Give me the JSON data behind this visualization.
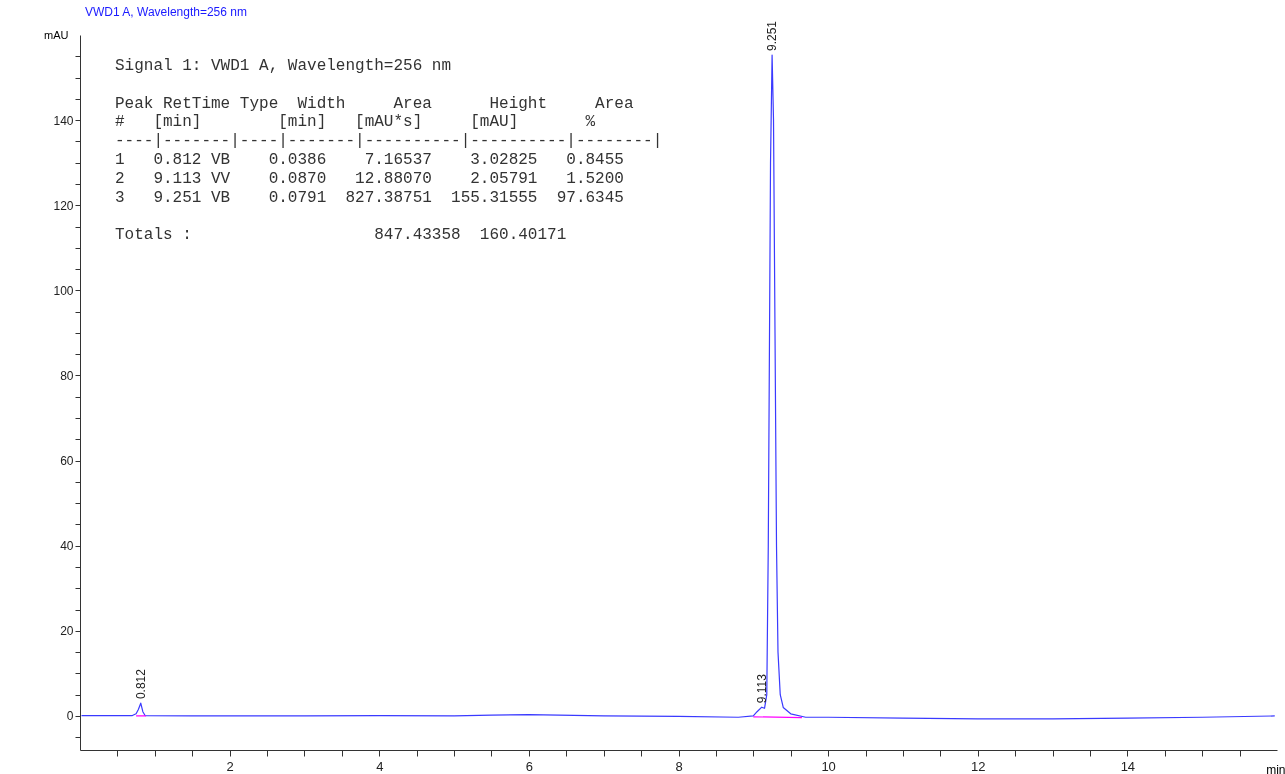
{
  "chart_data": {
    "type": "line",
    "title": "VWD1 A, Wavelength=256 nm",
    "xlabel": "min",
    "ylabel": "mAU",
    "xlim": [
      0,
      16
    ],
    "ylim": [
      -8,
      160
    ],
    "xticks": [
      {
        "value": 0.5,
        "label": null
      },
      {
        "value": 1,
        "label": null
      },
      {
        "value": 1.5,
        "label": null
      },
      2,
      {
        "value": 2.5,
        "label": null
      },
      {
        "value": 3,
        "label": null
      },
      {
        "value": 3.5,
        "label": null
      },
      4,
      {
        "value": 4.5,
        "label": null
      },
      {
        "value": 5,
        "label": null
      },
      {
        "value": 5.5,
        "label": null
      },
      6,
      {
        "value": 6.5,
        "label": null
      },
      {
        "value": 7,
        "label": null
      },
      {
        "value": 7.5,
        "label": null
      },
      8,
      {
        "value": 8.5,
        "label": null
      },
      {
        "value": 9,
        "label": null
      },
      {
        "value": 9.5,
        "label": null
      },
      10,
      {
        "value": 10.5,
        "label": null
      },
      {
        "value": 11,
        "label": null
      },
      {
        "value": 11.5,
        "label": null
      },
      12,
      {
        "value": 12.5,
        "label": null
      },
      {
        "value": 13,
        "label": null
      },
      {
        "value": 13.5,
        "label": null
      },
      14,
      {
        "value": 14.5,
        "label": null
      },
      {
        "value": 15,
        "label": null
      },
      {
        "value": 15.5,
        "label": null
      }
    ],
    "yticks": [
      {
        "value": -5,
        "label": null
      },
      0,
      {
        "value": 5,
        "label": null
      },
      {
        "value": 10,
        "label": null
      },
      {
        "value": 15,
        "label": null
      },
      20,
      {
        "value": 25,
        "label": null
      },
      {
        "value": 30,
        "label": null
      },
      {
        "value": 35,
        "label": null
      },
      40,
      {
        "value": 45,
        "label": null
      },
      {
        "value": 50,
        "label": null
      },
      {
        "value": 55,
        "label": null
      },
      60,
      {
        "value": 65,
        "label": null
      },
      {
        "value": 70,
        "label": null
      },
      {
        "value": 75,
        "label": null
      },
      80,
      {
        "value": 85,
        "label": null
      },
      {
        "value": 90,
        "label": null
      },
      {
        "value": 95,
        "label": null
      },
      100,
      {
        "value": 105,
        "label": null
      },
      {
        "value": 110,
        "label": null
      },
      {
        "value": 115,
        "label": null
      },
      120,
      {
        "value": 125,
        "label": null
      },
      {
        "value": 130,
        "label": null
      },
      {
        "value": 135,
        "label": null
      },
      140,
      {
        "value": 145,
        "label": null
      },
      {
        "value": 150,
        "label": null
      },
      {
        "value": 155,
        "label": null
      }
    ],
    "grid": false,
    "series": [
      {
        "type": "line",
        "color": "#3a3aff",
        "x": [
          0.02,
          0.5,
          0.7,
          0.75,
          0.78,
          0.812,
          0.84,
          0.87,
          1.5,
          3,
          4,
          5,
          5.5,
          6,
          7,
          8,
          8.8,
          9.0,
          9.05,
          9.113,
          9.15,
          9.18,
          9.2,
          9.23,
          9.251,
          9.27,
          9.29,
          9.31,
          9.33,
          9.36,
          9.4,
          9.5,
          9.7,
          10,
          11,
          12,
          13,
          14,
          15,
          15.97
        ],
        "values": [
          0.1,
          0.1,
          0.1,
          0.5,
          1.5,
          3.0,
          1.0,
          0.1,
          0.0,
          0.0,
          0.1,
          0.0,
          0.2,
          0.3,
          0.0,
          -0.1,
          -0.3,
          0.0,
          1.0,
          2.06,
          1.8,
          5,
          40,
          130,
          155.3,
          140,
          90,
          40,
          15,
          5,
          2,
          0.5,
          -0.3,
          -0.3,
          -0.5,
          -0.7,
          -0.7,
          -0.5,
          -0.3,
          0.0
        ]
      },
      {
        "type": "line",
        "color": "#ff00ff",
        "x": [
          0.75,
          0.88,
          5,
          9.0,
          9.65
        ],
        "values": [
          0,
          0,
          null,
          -0.2,
          -0.4
        ]
      }
    ],
    "annotations": [
      {
        "text": "0.812",
        "x": 0.812,
        "y": 3.03
      },
      {
        "text": "9.113",
        "x": 9.113,
        "y": 2.06
      },
      {
        "text": "9.251",
        "x": 9.251,
        "y": 155.3
      },
      "Signal 1: VWD1 A, Wavelength=256 nm",
      "Peak RetTime Type  Width     Area      Height     Area",
      "  #   [min]        [min]   [mAU*s]     [mAU]       %",
      "----|-------|----|-------|----------|----------|--------|",
      "   1   0.812 VB    0.0386    7.16537    3.02825   0.8455",
      "   2   9.113 VV    0.0870   12.88070    2.05791   1.5200",
      "   3   9.251 VB    0.0791  827.38751  155.31555  97.6345",
      "Totals :                   847.43358  160.40171"
    ]
  }
}
